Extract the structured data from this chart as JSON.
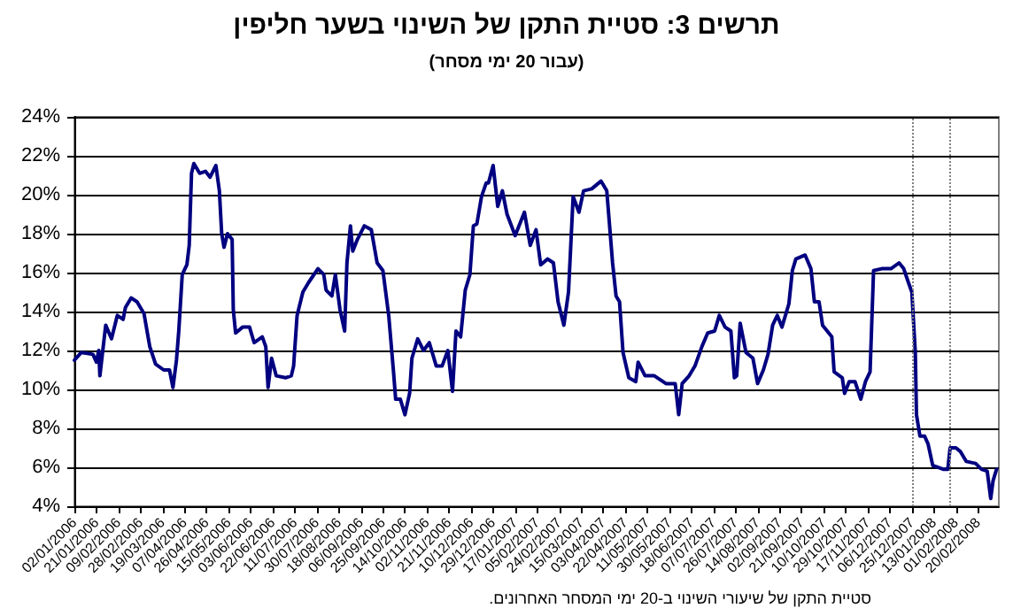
{
  "chart_data": {
    "type": "line",
    "title": "תרשים 3: סטיית התקן של השינוי בשער חליפין",
    "subtitle": "(עבור 20 ימי מסחר)",
    "annotations": [
      "סטיית התקן של שיעורי השינוי ב-20 ימי המסחר האחרונים."
    ],
    "x": [
      "2006-01-02",
      "2006-01-08",
      "2006-01-18",
      "2006-01-21",
      "2006-01-23",
      "2006-01-24",
      "2006-01-29",
      "2006-02-03",
      "2006-02-08",
      "2006-02-13",
      "2006-02-15",
      "2006-02-20",
      "2006-02-25",
      "2006-03-03",
      "2006-03-08",
      "2006-03-13",
      "2006-03-20",
      "2006-03-25",
      "2006-03-28",
      "2006-03-31",
      "2006-04-02",
      "2006-04-05",
      "2006-04-09",
      "2006-04-11",
      "2006-04-13",
      "2006-04-15",
      "2006-04-20",
      "2006-04-25",
      "2006-04-29",
      "2006-05-04",
      "2006-05-07",
      "2006-05-09",
      "2006-05-11",
      "2006-05-14",
      "2006-05-18",
      "2006-05-19",
      "2006-05-21",
      "2006-05-27",
      "2006-06-02",
      "2006-06-06",
      "2006-06-13",
      "2006-06-16",
      "2006-06-18",
      "2006-06-21",
      "2006-06-25",
      "2006-07-03",
      "2006-07-08",
      "2006-07-10",
      "2006-07-13",
      "2006-07-18",
      "2006-07-23",
      "2006-07-31",
      "2006-08-05",
      "2006-08-07",
      "2006-08-12",
      "2006-08-15",
      "2006-08-19",
      "2006-08-23",
      "2006-08-25",
      "2006-08-28",
      "2006-08-30",
      "2006-09-03",
      "2006-09-09",
      "2006-09-15",
      "2006-09-20",
      "2006-09-25",
      "2006-09-30",
      "2006-10-04",
      "2006-10-06",
      "2006-10-10",
      "2006-10-14",
      "2006-10-18",
      "2006-10-20",
      "2006-10-25",
      "2006-10-30",
      "2006-11-04",
      "2006-11-10",
      "2006-11-15",
      "2006-11-20",
      "2006-11-24",
      "2006-11-27",
      "2006-12-01",
      "2006-12-05",
      "2006-12-09",
      "2006-12-12",
      "2006-12-15",
      "2006-12-19",
      "2006-12-23",
      "2006-12-25",
      "2006-12-29",
      "2007-01-02",
      "2007-01-06",
      "2007-01-10",
      "2007-01-17",
      "2007-01-25",
      "2007-01-30",
      "2007-02-04",
      "2007-02-08",
      "2007-02-14",
      "2007-02-19",
      "2007-02-23",
      "2007-02-28",
      "2007-03-04",
      "2007-03-08",
      "2007-03-13",
      "2007-03-17",
      "2007-03-24",
      "2007-04-01",
      "2007-04-06",
      "2007-04-11",
      "2007-04-14",
      "2007-04-17",
      "2007-04-20",
      "2007-04-25",
      "2007-05-01",
      "2007-05-03",
      "2007-05-09",
      "2007-05-17",
      "2007-05-27",
      "2007-06-04",
      "2007-06-07",
      "2007-06-10",
      "2007-06-16",
      "2007-06-21",
      "2007-06-27",
      "2007-07-02",
      "2007-07-08",
      "2007-07-12",
      "2007-07-17",
      "2007-07-22",
      "2007-07-25",
      "2007-07-27",
      "2007-07-30",
      "2007-08-04",
      "2007-08-10",
      "2007-08-14",
      "2007-08-19",
      "2007-08-23",
      "2007-08-27",
      "2007-08-31",
      "2007-09-04",
      "2007-09-10",
      "2007-09-13",
      "2007-09-16",
      "2007-09-24",
      "2007-09-29",
      "2007-10-02",
      "2007-10-06",
      "2007-10-09",
      "2007-10-17",
      "2007-10-19",
      "2007-10-26",
      "2007-10-28",
      "2007-11-01",
      "2007-11-06",
      "2007-11-11",
      "2007-11-15",
      "2007-11-19",
      "2007-11-22",
      "2007-11-29",
      "2007-12-07",
      "2007-12-14",
      "2007-12-18",
      "2007-12-22",
      "2007-12-25",
      "2007-12-28",
      "2007-12-29",
      "2008-01-01",
      "2008-01-05",
      "2008-01-08",
      "2008-01-12",
      "2008-01-21",
      "2008-01-25",
      "2008-01-27",
      "2008-02-01",
      "2008-02-05",
      "2008-02-10",
      "2008-02-18",
      "2008-02-23",
      "2008-02-28",
      "2008-03-02",
      "2008-03-04",
      "2008-03-07"
    ],
    "series": [
      {
        "color": "#000080",
        "values": [
          11.5,
          11.9,
          11.8,
          11.4,
          12.0,
          10.7,
          13.3,
          12.6,
          13.8,
          13.6,
          14.2,
          14.7,
          14.5,
          13.9,
          12.2,
          11.3,
          11.0,
          11.0,
          10.1,
          11.5,
          13.0,
          15.9,
          16.4,
          17.4,
          21.1,
          21.6,
          21.1,
          21.2,
          20.9,
          21.5,
          20.2,
          18.0,
          17.3,
          18.0,
          17.7,
          14.1,
          12.9,
          13.2,
          13.2,
          12.4,
          12.7,
          12.2,
          10.1,
          11.6,
          10.7,
          10.6,
          10.7,
          11.2,
          13.8,
          15.0,
          15.5,
          16.2,
          15.9,
          15.1,
          14.8,
          15.9,
          14.1,
          13.0,
          16.5,
          18.4,
          17.1,
          17.7,
          18.4,
          18.2,
          16.5,
          16.1,
          13.8,
          11.0,
          9.5,
          9.5,
          8.7,
          9.8,
          11.6,
          12.6,
          12.0,
          12.4,
          11.2,
          11.2,
          12.0,
          9.9,
          13.0,
          12.7,
          15.1,
          15.9,
          18.4,
          18.5,
          19.9,
          20.6,
          20.6,
          21.5,
          19.4,
          20.2,
          19.0,
          17.9,
          19.1,
          17.4,
          18.2,
          16.4,
          16.7,
          16.5,
          14.5,
          13.3,
          15.0,
          19.9,
          19.1,
          20.2,
          20.3,
          20.7,
          20.2,
          16.5,
          14.8,
          14.5,
          11.9,
          10.6,
          10.4,
          11.4,
          10.7,
          10.7,
          10.3,
          10.3,
          8.7,
          10.3,
          10.7,
          11.2,
          12.2,
          12.9,
          13.0,
          13.8,
          13.2,
          13.0,
          10.6,
          10.7,
          13.4,
          11.9,
          11.6,
          10.3,
          11.0,
          11.8,
          13.3,
          13.8,
          13.2,
          14.4,
          16.1,
          16.7,
          16.9,
          16.2,
          14.5,
          14.5,
          13.3,
          12.7,
          10.9,
          10.6,
          9.8,
          10.4,
          10.4,
          9.5,
          10.4,
          10.9,
          16.1,
          16.2,
          16.2,
          16.5,
          16.2,
          15.5,
          15.0,
          11.9,
          8.7,
          7.6,
          7.6,
          7.2,
          6.1,
          5.9,
          5.9,
          7.0,
          7.0,
          6.8,
          6.3,
          6.2,
          5.9,
          5.8,
          4.4,
          5.3,
          5.9
        ]
      }
    ],
    "xlim": [
      "2006-01-02",
      "2008-03-09"
    ],
    "xticks": [
      {
        "value": "2006-01-02",
        "label": "02/01/2006"
      },
      {
        "value": "2006-01-21",
        "label": "21/01/2006"
      },
      {
        "value": "2006-02-09",
        "label": "09/02/2006"
      },
      {
        "value": "2006-02-28",
        "label": "28/02/2006"
      },
      {
        "value": "2006-03-19",
        "label": "19/03/2006"
      },
      {
        "value": "2006-04-07",
        "label": "07/04/2006"
      },
      {
        "value": "2006-04-26",
        "label": "26/04/2006"
      },
      {
        "value": "2006-05-15",
        "label": "15/05/2006"
      },
      {
        "value": "2006-06-03",
        "label": "03/06/2006"
      },
      {
        "value": "2006-06-22",
        "label": "22/06/2006"
      },
      {
        "value": "2006-07-11",
        "label": "11/07/2006"
      },
      {
        "value": "2006-07-30",
        "label": "30/07/2006"
      },
      {
        "value": "2006-08-18",
        "label": "18/08/2006"
      },
      {
        "value": "2006-09-06",
        "label": "06/09/2006"
      },
      {
        "value": "2006-09-25",
        "label": "25/09/2006"
      },
      {
        "value": "2006-10-14",
        "label": "14/10/2006"
      },
      {
        "value": "2006-11-02",
        "label": "02/11/2006"
      },
      {
        "value": "2006-11-21",
        "label": "21/11/2006"
      },
      {
        "value": "2006-12-10",
        "label": "10/12/2006"
      },
      {
        "value": "2006-12-29",
        "label": "29/12/2006"
      },
      {
        "value": "2007-01-17",
        "label": "17/01/2007"
      },
      {
        "value": "2007-02-05",
        "label": "05/02/2007"
      },
      {
        "value": "2007-02-24",
        "label": "24/02/2007"
      },
      {
        "value": "2007-03-15",
        "label": "15/03/2007"
      },
      {
        "value": "2007-04-03",
        "label": "03/04/2007"
      },
      {
        "value": "2007-04-22",
        "label": "22/04/2007"
      },
      {
        "value": "2007-05-11",
        "label": "11/05/2007"
      },
      {
        "value": "2007-05-30",
        "label": "30/05/2007"
      },
      {
        "value": "2007-06-18",
        "label": "18/06/2007"
      },
      {
        "value": "2007-07-07",
        "label": "07/07/2007"
      },
      {
        "value": "2007-07-26",
        "label": "26/07/2007"
      },
      {
        "value": "2007-08-14",
        "label": "14/08/2007"
      },
      {
        "value": "2007-09-02",
        "label": "02/09/2007"
      },
      {
        "value": "2007-09-21",
        "label": "21/09/2007"
      },
      {
        "value": "2007-10-10",
        "label": "10/10/2007"
      },
      {
        "value": "2007-10-29",
        "label": "29/10/2007"
      },
      {
        "value": "2007-11-17",
        "label": "17/11/2007"
      },
      {
        "value": "2007-12-06",
        "label": "06/12/2007"
      },
      {
        "value": "2007-12-25",
        "label": "25/12/2007"
      },
      {
        "value": "2008-01-13",
        "label": "13/01/2008"
      },
      {
        "value": "2008-02-01",
        "label": "01/02/2008"
      },
      {
        "value": "2008-02-20",
        "label": "20/02/2008"
      }
    ],
    "ylim": [
      4,
      24
    ],
    "yticks": [
      {
        "value": 4,
        "label": "4%"
      },
      {
        "value": 6,
        "label": "6%"
      },
      {
        "value": 8,
        "label": "8%"
      },
      {
        "value": 10,
        "label": "10%"
      },
      {
        "value": 12,
        "label": "12%"
      },
      {
        "value": 14,
        "label": "14%"
      },
      {
        "value": 16,
        "label": "16%"
      },
      {
        "value": 18,
        "label": "18%"
      },
      {
        "value": 20,
        "label": "20%"
      },
      {
        "value": 22,
        "label": "22%"
      },
      {
        "value": 24,
        "label": "24%"
      }
    ],
    "ref_lines": [
      {
        "axis": "x",
        "value": "2007-12-25",
        "color": "#808080",
        "line_style": "dotted"
      },
      {
        "axis": "x",
        "value": "2008-01-26",
        "color": "#808080",
        "line_style": "dotted"
      }
    ],
    "grid": "y",
    "marker": "none",
    "line_style": "solid"
  }
}
